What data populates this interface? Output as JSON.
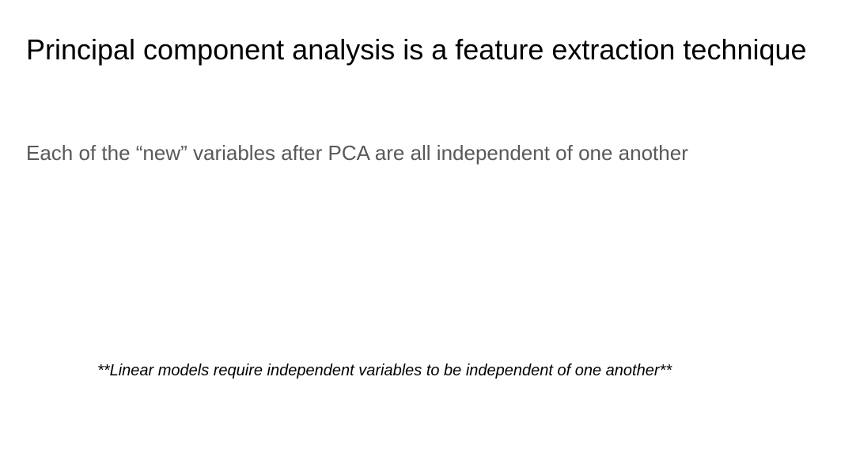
{
  "slide": {
    "title": "Principal component analysis is a feature extraction technique",
    "body": "Each of the “new” variables after PCA are all independent of one another",
    "footnote": "**Linear models require independent variables to be independent of one another**"
  },
  "colors": {
    "title": "#000000",
    "body": "#595959",
    "footnote": "#000000",
    "background": "#ffffff"
  }
}
